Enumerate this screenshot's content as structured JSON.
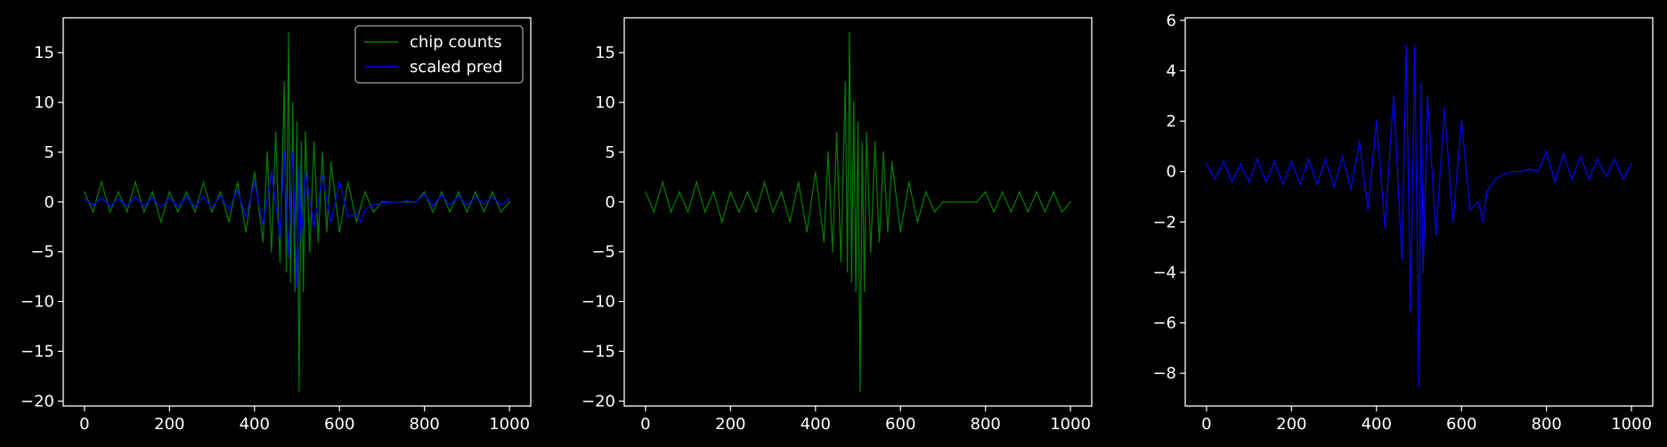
{
  "chart_data": [
    {
      "type": "line",
      "title": "",
      "xlabel": "",
      "ylabel": "",
      "xlim": [
        -50,
        1050
      ],
      "ylim": [
        -20.5,
        18.5
      ],
      "xticks": [
        0,
        200,
        400,
        600,
        800,
        1000
      ],
      "xtick_labels": [
        "0",
        "200",
        "400",
        "600",
        "800",
        "1000"
      ],
      "yticks": [
        -20,
        -15,
        -10,
        -5,
        0,
        5,
        10,
        15
      ],
      "ytick_labels": [
        "−20",
        "−15",
        "−10",
        "−5",
        "0",
        "5",
        "10",
        "15"
      ],
      "grid": false,
      "legend": {
        "placement": "upper-right",
        "entries": [
          "chip counts",
          "scaled pred"
        ]
      },
      "series": [
        {
          "name": "chip counts",
          "color": "#008000",
          "x": [
            0,
            20,
            40,
            60,
            80,
            100,
            120,
            140,
            160,
            180,
            200,
            220,
            240,
            260,
            280,
            300,
            320,
            340,
            360,
            380,
            400,
            420,
            430,
            440,
            450,
            460,
            470,
            475,
            480,
            485,
            490,
            495,
            500,
            505,
            510,
            515,
            520,
            530,
            540,
            550,
            560,
            570,
            580,
            600,
            620,
            640,
            660,
            680,
            700,
            720,
            740,
            760,
            780,
            800,
            820,
            840,
            860,
            880,
            900,
            920,
            940,
            960,
            980,
            1000
          ],
          "y": [
            1,
            -1,
            2,
            -1,
            1,
            -1,
            2,
            -1,
            1,
            -2,
            1,
            -1,
            1,
            -1,
            2,
            -1,
            1,
            -2,
            2,
            -3,
            3,
            -4,
            5,
            -5,
            7,
            -6,
            12,
            -7,
            17,
            -8,
            10,
            -9,
            8,
            -19,
            6,
            -9,
            7,
            -5,
            6,
            -4,
            5,
            -3,
            4,
            -3,
            2,
            -2,
            1,
            -1,
            0,
            0,
            0,
            0,
            0,
            1,
            -1,
            1,
            -1,
            1,
            -1,
            1,
            -1,
            1,
            -1,
            0
          ]
        },
        {
          "name": "scaled pred",
          "color": "#0000ff",
          "x": [
            0,
            20,
            40,
            60,
            80,
            100,
            120,
            140,
            160,
            180,
            200,
            220,
            240,
            260,
            280,
            300,
            320,
            340,
            360,
            380,
            400,
            420,
            440,
            460,
            470,
            480,
            490,
            500,
            505,
            510,
            520,
            540,
            560,
            580,
            600,
            620,
            640,
            650,
            660,
            680,
            700,
            720,
            740,
            760,
            780,
            800,
            820,
            840,
            860,
            880,
            900,
            920,
            940,
            960,
            980,
            1000
          ],
          "y": [
            0.3,
            -0.3,
            0.4,
            -0.4,
            0.3,
            -0.4,
            0.5,
            -0.4,
            0.4,
            -0.5,
            0.4,
            -0.5,
            0.5,
            -0.5,
            0.5,
            -0.6,
            0.6,
            -0.7,
            1.2,
            -1.5,
            2.0,
            -2.2,
            3.0,
            -3.5,
            5.0,
            -5.5,
            5.0,
            -8.5,
            3.5,
            -4.0,
            3.0,
            -2.5,
            2.5,
            -2.0,
            2.0,
            -1.5,
            -1.2,
            -2.0,
            -0.8,
            -0.3,
            -0.1,
            0.0,
            0.0,
            0.1,
            0.0,
            0.8,
            -0.4,
            0.7,
            -0.3,
            0.6,
            -0.3,
            0.5,
            -0.2,
            0.5,
            -0.3,
            0.3
          ]
        }
      ]
    },
    {
      "type": "line",
      "title": "",
      "xlabel": "",
      "ylabel": "",
      "xlim": [
        -50,
        1050
      ],
      "ylim": [
        -20.5,
        18.5
      ],
      "xticks": [
        0,
        200,
        400,
        600,
        800,
        1000
      ],
      "xtick_labels": [
        "0",
        "200",
        "400",
        "600",
        "800",
        "1000"
      ],
      "yticks": [
        -20,
        -15,
        -10,
        -5,
        0,
        5,
        10,
        15
      ],
      "ytick_labels": [
        "−20",
        "−15",
        "−10",
        "−5",
        "0",
        "5",
        "10",
        "15"
      ],
      "grid": false,
      "series": [
        {
          "color": "#008000",
          "x": [
            0,
            20,
            40,
            60,
            80,
            100,
            120,
            140,
            160,
            180,
            200,
            220,
            240,
            260,
            280,
            300,
            320,
            340,
            360,
            380,
            400,
            420,
            430,
            440,
            450,
            460,
            470,
            475,
            480,
            485,
            490,
            495,
            500,
            505,
            510,
            515,
            520,
            530,
            540,
            550,
            560,
            570,
            580,
            600,
            620,
            640,
            660,
            680,
            700,
            720,
            740,
            760,
            780,
            800,
            820,
            840,
            860,
            880,
            900,
            920,
            940,
            960,
            980,
            1000
          ],
          "y": [
            1,
            -1,
            2,
            -1,
            1,
            -1,
            2,
            -1,
            1,
            -2,
            1,
            -1,
            1,
            -1,
            2,
            -1,
            1,
            -2,
            2,
            -3,
            3,
            -4,
            5,
            -5,
            7,
            -6,
            12,
            -7,
            17,
            -8,
            10,
            -9,
            8,
            -19,
            6,
            -9,
            7,
            -5,
            6,
            -4,
            5,
            -3,
            4,
            -3,
            2,
            -2,
            1,
            -1,
            0,
            0,
            0,
            0,
            0,
            1,
            -1,
            1,
            -1,
            1,
            -1,
            1,
            -1,
            1,
            -1,
            0
          ]
        }
      ]
    },
    {
      "type": "line",
      "title": "",
      "xlabel": "",
      "ylabel": "",
      "xlim": [
        -50,
        1050
      ],
      "ylim": [
        -9.3,
        6.1
      ],
      "xticks": [
        0,
        200,
        400,
        600,
        800,
        1000
      ],
      "xtick_labels": [
        "0",
        "200",
        "400",
        "600",
        "800",
        "1000"
      ],
      "yticks": [
        -8,
        -6,
        -4,
        -2,
        0,
        2,
        4,
        6
      ],
      "ytick_labels": [
        "−8",
        "−6",
        "−4",
        "−2",
        "0",
        "2",
        "4",
        "6"
      ],
      "grid": false,
      "series": [
        {
          "color": "#0000ff",
          "x": [
            0,
            20,
            40,
            60,
            80,
            100,
            120,
            140,
            160,
            180,
            200,
            220,
            240,
            260,
            280,
            300,
            320,
            340,
            360,
            380,
            400,
            420,
            440,
            460,
            470,
            480,
            490,
            500,
            505,
            510,
            520,
            540,
            560,
            580,
            600,
            620,
            640,
            650,
            660,
            680,
            700,
            720,
            740,
            760,
            780,
            800,
            820,
            840,
            860,
            880,
            900,
            920,
            940,
            960,
            980,
            1000
          ],
          "y": [
            0.3,
            -0.3,
            0.4,
            -0.4,
            0.3,
            -0.4,
            0.5,
            -0.4,
            0.4,
            -0.5,
            0.4,
            -0.5,
            0.5,
            -0.5,
            0.5,
            -0.6,
            0.6,
            -0.7,
            1.2,
            -1.5,
            2.0,
            -2.2,
            3.0,
            -3.5,
            5.0,
            -5.5,
            5.0,
            -8.5,
            3.5,
            -4.0,
            3.0,
            -2.5,
            2.5,
            -2.0,
            2.0,
            -1.5,
            -1.2,
            -2.0,
            -0.8,
            -0.3,
            -0.1,
            0.0,
            0.0,
            0.1,
            0.0,
            0.8,
            -0.4,
            0.7,
            -0.3,
            0.6,
            -0.3,
            0.5,
            -0.2,
            0.5,
            -0.3,
            0.3
          ]
        }
      ]
    }
  ]
}
